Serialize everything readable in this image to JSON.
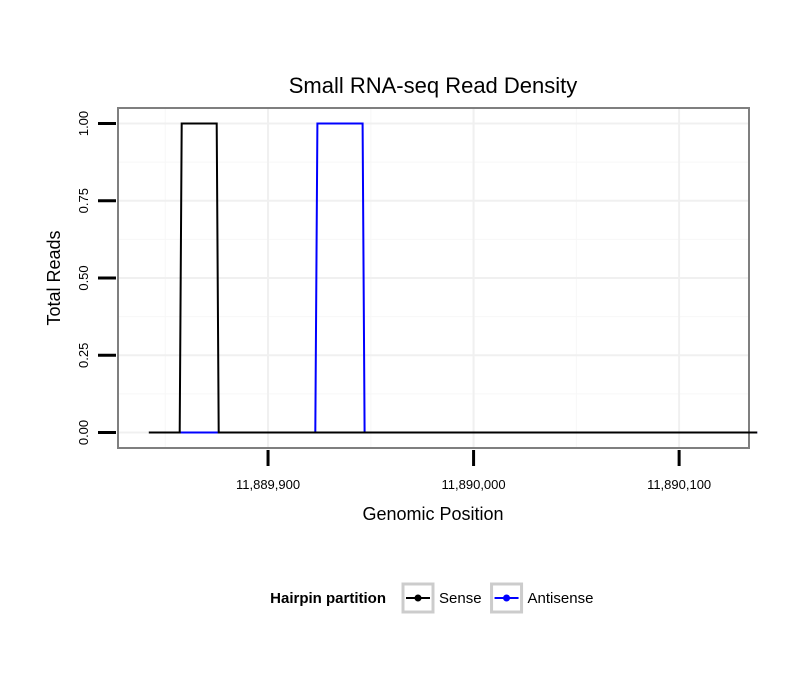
{
  "chart_data": {
    "type": "line",
    "title": "Small RNA-seq Read Density",
    "xlabel": "Genomic Position",
    "ylabel": "Total Reads",
    "xlim": [
      11889827,
      11890134
    ],
    "ylim": [
      -0.05,
      1.05
    ],
    "x_ticks": [
      {
        "value": 11889900,
        "label": "11,889,900"
      },
      {
        "value": 11890000,
        "label": "11,890,000"
      },
      {
        "value": 11890100,
        "label": "11,890,100"
      }
    ],
    "y_ticks": [
      {
        "value": 0.0,
        "label": "0.00"
      },
      {
        "value": 0.25,
        "label": "0.25"
      },
      {
        "value": 0.5,
        "label": "0.50"
      },
      {
        "value": 0.75,
        "label": "0.75"
      },
      {
        "value": 1.0,
        "label": "1.00"
      }
    ],
    "grid": true,
    "legend_position": "bottom",
    "legend_title": "Hairpin partition",
    "series": [
      {
        "name": "Sense",
        "color": "#000000",
        "x": [
          11889842,
          11889857,
          11889858,
          11889875,
          11889876,
          11890138
        ],
        "y": [
          0,
          0,
          1,
          1,
          0,
          0
        ]
      },
      {
        "name": "Antisense",
        "color": "#0000ff",
        "x": [
          11889857,
          11889923,
          11889924,
          11889946,
          11889947,
          11890138
        ],
        "y": [
          0,
          0,
          1,
          1,
          0,
          0
        ]
      }
    ]
  }
}
